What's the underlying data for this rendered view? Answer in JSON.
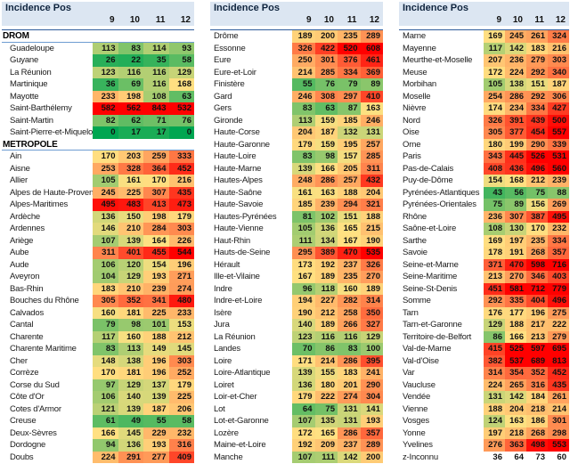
{
  "chart_data": {
    "type": "heatmap",
    "title": "Incidence Pos",
    "week_columns": [
      "9",
      "10",
      "11",
      "12"
    ],
    "color_scale": {
      "min_value": 0,
      "mid_value": 165,
      "max_value": 520,
      "min_color": "#00A651",
      "mid_color": "#FFE182",
      "max_color": "#FF0000"
    },
    "colors": {
      "header_bg": "#DCE6F2",
      "header_border_blue": "#2E5C9C",
      "section_underline_blue": "#6E9CD2",
      "no_fill_bg": "#FFFFFF"
    },
    "tables": [
      {
        "rows": [
          {
            "section": "DROM"
          },
          {
            "name": "Guadeloupe",
            "values": [
              113,
              83,
              114,
              93
            ]
          },
          {
            "name": "Guyane",
            "values": [
              26,
              22,
              35,
              58
            ]
          },
          {
            "name": "La Réunion",
            "values": [
              123,
              116,
              116,
              129
            ]
          },
          {
            "name": "Martinique",
            "values": [
              36,
              69,
              116,
              168
            ]
          },
          {
            "name": "Mayotte",
            "values": [
              233,
              198,
              108,
              63
            ]
          },
          {
            "name": "Saint-Barthélemy",
            "values": [
              582,
              562,
              843,
              532
            ]
          },
          {
            "name": "Saint-Martin",
            "values": [
              82,
              62,
              71,
              76
            ]
          },
          {
            "name": "Saint-Pierre-et-Miquelon",
            "values": [
              0,
              17,
              17,
              0
            ]
          },
          {
            "section": "METROPOLE"
          },
          {
            "name": "Ain",
            "values": [
              170,
              203,
              259,
              333
            ]
          },
          {
            "name": "Aisne",
            "values": [
              253,
              328,
              364,
              452
            ]
          },
          {
            "name": "Allier",
            "values": [
              105,
              161,
              170,
              216
            ]
          },
          {
            "name": "Alpes de Haute-Provence",
            "values": [
              245,
              225,
              307,
              435
            ]
          },
          {
            "name": "Alpes-Maritimes",
            "values": [
              495,
              483,
              413,
              473
            ]
          },
          {
            "name": "Ardèche",
            "values": [
              136,
              150,
              198,
              179
            ]
          },
          {
            "name": "Ardennes",
            "values": [
              146,
              210,
              284,
              303
            ]
          },
          {
            "name": "Ariège",
            "values": [
              107,
              139,
              164,
              226
            ]
          },
          {
            "name": "Aube",
            "values": [
              311,
              401,
              455,
              544
            ]
          },
          {
            "name": "Aude",
            "values": [
              106,
              120,
              154,
              196
            ]
          },
          {
            "name": "Aveyron",
            "values": [
              104,
              129,
              193,
              271
            ]
          },
          {
            "name": "Bas-Rhin",
            "values": [
              183,
              210,
              239,
              274
            ]
          },
          {
            "name": "Bouches du Rhône",
            "values": [
              305,
              352,
              341,
              480
            ]
          },
          {
            "name": "Calvados",
            "values": [
              160,
              181,
              225,
              233
            ]
          },
          {
            "name": "Cantal",
            "values": [
              79,
              98,
              101,
              153
            ]
          },
          {
            "name": "Charente",
            "values": [
              117,
              160,
              188,
              212
            ]
          },
          {
            "name": "Charente Maritime",
            "values": [
              83,
              113,
              149,
              145
            ]
          },
          {
            "name": "Cher",
            "values": [
              148,
              138,
              196,
              303
            ]
          },
          {
            "name": "Corrèze",
            "values": [
              170,
              181,
              196,
              252
            ]
          },
          {
            "name": "Corse du Sud",
            "values": [
              97,
              129,
              137,
              179
            ]
          },
          {
            "name": "Côte d'Or",
            "values": [
              106,
              140,
              139,
              225
            ]
          },
          {
            "name": "Cotes d'Armor",
            "values": [
              121,
              139,
              187,
              206
            ]
          },
          {
            "name": "Creuse",
            "values": [
              61,
              49,
              55,
              58
            ]
          },
          {
            "name": "Deux-Sèvres",
            "values": [
              166,
              145,
              229,
              232
            ]
          },
          {
            "name": "Dordogne",
            "values": [
              94,
              136,
              193,
              316
            ]
          },
          {
            "name": "Doubs",
            "values": [
              224,
              291,
              277,
              409
            ]
          }
        ]
      },
      {
        "rows": [
          {
            "name": "Drôme",
            "values": [
              189,
              200,
              235,
              289
            ]
          },
          {
            "name": "Essonne",
            "values": [
              326,
              422,
              520,
              608
            ]
          },
          {
            "name": "Eure",
            "values": [
              250,
              301,
              376,
              461
            ]
          },
          {
            "name": "Eure-et-Loir",
            "values": [
              214,
              285,
              334,
              369
            ]
          },
          {
            "name": "Finistère",
            "values": [
              55,
              76,
              79,
              89
            ]
          },
          {
            "name": "Gard",
            "values": [
              246,
              308,
              297,
              410
            ]
          },
          {
            "name": "Gers",
            "values": [
              83,
              63,
              87,
              163
            ]
          },
          {
            "name": "Gironde",
            "values": [
              113,
              159,
              185,
              246
            ]
          },
          {
            "name": "Haute-Corse",
            "values": [
              204,
              187,
              132,
              131
            ]
          },
          {
            "name": "Haute-Garonne",
            "values": [
              179,
              159,
              195,
              257
            ]
          },
          {
            "name": "Haute-Loire",
            "values": [
              83,
              98,
              157,
              285
            ]
          },
          {
            "name": "Haute-Marne",
            "values": [
              139,
              166,
              205,
              311
            ]
          },
          {
            "name": "Hautes-Alpes",
            "values": [
              248,
              286,
              257,
              432
            ]
          },
          {
            "name": "Haute-Saône",
            "values": [
              161,
              163,
              188,
              204
            ]
          },
          {
            "name": "Haute-Savoie",
            "values": [
              185,
              239,
              294,
              321
            ]
          },
          {
            "name": "Hautes-Pyrénées",
            "values": [
              81,
              102,
              151,
              188
            ]
          },
          {
            "name": "Haute-Vienne",
            "values": [
              105,
              136,
              165,
              215
            ]
          },
          {
            "name": "Haut-Rhin",
            "values": [
              111,
              134,
              167,
              190
            ]
          },
          {
            "name": "Hauts-de-Seine",
            "values": [
              295,
              389,
              470,
              535
            ]
          },
          {
            "name": "Hérault",
            "values": [
              173,
              192,
              237,
              326
            ]
          },
          {
            "name": "Ille-et-Vilaine",
            "values": [
              167,
              189,
              235,
              270
            ]
          },
          {
            "name": "Indre",
            "values": [
              96,
              118,
              160,
              189
            ]
          },
          {
            "name": "Indre-et-Loire",
            "values": [
              194,
              227,
              282,
              314
            ]
          },
          {
            "name": "Isère",
            "values": [
              190,
              212,
              258,
              350
            ]
          },
          {
            "name": "Jura",
            "values": [
              140,
              189,
              266,
              327
            ]
          },
          {
            "name": "La Réunion",
            "values": [
              123,
              116,
              116,
              129
            ]
          },
          {
            "name": "Landes",
            "values": [
              70,
              86,
              83,
              100
            ]
          },
          {
            "name": "Loire",
            "values": [
              171,
              214,
              286,
              395
            ]
          },
          {
            "name": "Loire-Atlantique",
            "values": [
              139,
              155,
              183,
              241
            ]
          },
          {
            "name": "Loiret",
            "values": [
              136,
              180,
              201,
              290
            ]
          },
          {
            "name": "Loir-et-Cher",
            "values": [
              179,
              222,
              274,
              304
            ]
          },
          {
            "name": "Lot",
            "values": [
              64,
              75,
              131,
              141
            ]
          },
          {
            "name": "Lot-et-Garonne",
            "values": [
              107,
              135,
              131,
              193
            ]
          },
          {
            "name": "Lozère",
            "values": [
              172,
              165,
              286,
              357
            ]
          },
          {
            "name": "Maine-et-Loire",
            "values": [
              192,
              209,
              237,
              289
            ]
          },
          {
            "name": "Manche",
            "values": [
              107,
              111,
              142,
              200
            ]
          }
        ]
      },
      {
        "rows": [
          {
            "name": "Marne",
            "values": [
              169,
              245,
              261,
              324
            ]
          },
          {
            "name": "Mayenne",
            "values": [
              117,
              142,
              183,
              216
            ]
          },
          {
            "name": "Meurthe-et-Moselle",
            "values": [
              207,
              236,
              279,
              303
            ]
          },
          {
            "name": "Meuse",
            "values": [
              172,
              224,
              292,
              340
            ]
          },
          {
            "name": "Morbihan",
            "values": [
              105,
              138,
              151,
              187
            ]
          },
          {
            "name": "Moselle",
            "values": [
              254,
              286,
              292,
              306
            ]
          },
          {
            "name": "Nièvre",
            "values": [
              174,
              234,
              334,
              427
            ]
          },
          {
            "name": "Nord",
            "values": [
              326,
              391,
              439,
              500
            ]
          },
          {
            "name": "Oise",
            "values": [
              305,
              377,
              454,
              557
            ]
          },
          {
            "name": "Orne",
            "values": [
              180,
              199,
              290,
              339
            ]
          },
          {
            "name": "Paris",
            "values": [
              343,
              445,
              526,
              531
            ]
          },
          {
            "name": "Pas-de-Calais",
            "values": [
              408,
              436,
              496,
              560
            ]
          },
          {
            "name": "Puy-de-Dôme",
            "values": [
              154,
              168,
              212,
              239
            ]
          },
          {
            "name": "Pyrénées-Atlantiques",
            "values": [
              43,
              56,
              75,
              88
            ]
          },
          {
            "name": "Pyrénées-Orientales",
            "values": [
              75,
              89,
              156,
              269
            ]
          },
          {
            "name": "Rhône",
            "values": [
              236,
              307,
              387,
              495
            ]
          },
          {
            "name": "Saône-et-Loire",
            "values": [
              108,
              130,
              170,
              232
            ]
          },
          {
            "name": "Sarthe",
            "values": [
              169,
              197,
              235,
              334
            ]
          },
          {
            "name": "Savoie",
            "values": [
              178,
              191,
              268,
              357
            ]
          },
          {
            "name": "Seine-et-Marne",
            "values": [
              371,
              470,
              598,
              716
            ]
          },
          {
            "name": "Seine-Maritime",
            "values": [
              213,
              270,
              346,
              403
            ]
          },
          {
            "name": "Seine-St-Denis",
            "values": [
              451,
              581,
              712,
              779
            ]
          },
          {
            "name": "Somme",
            "values": [
              292,
              335,
              404,
              496
            ]
          },
          {
            "name": "Tarn",
            "values": [
              176,
              177,
              196,
              275
            ]
          },
          {
            "name": "Tarn-et-Garonne",
            "values": [
              129,
              188,
              217,
              222
            ]
          },
          {
            "name": "Territoire-de-Belfort",
            "values": [
              86,
              166,
              213,
              279
            ]
          },
          {
            "name": "Val-de-Marne",
            "values": [
              415,
              525,
              597,
              695
            ]
          },
          {
            "name": "Val-d'Oise",
            "values": [
              382,
              537,
              689,
              813
            ]
          },
          {
            "name": "Var",
            "values": [
              314,
              354,
              352,
              452
            ]
          },
          {
            "name": "Vaucluse",
            "values": [
              224,
              265,
              316,
              435
            ]
          },
          {
            "name": "Vendée",
            "values": [
              131,
              142,
              184,
              261
            ]
          },
          {
            "name": "Vienne",
            "values": [
              188,
              204,
              218,
              214
            ]
          },
          {
            "name": "Vosges",
            "values": [
              124,
              163,
              186,
              301
            ]
          },
          {
            "name": "Yonne",
            "values": [
              197,
              218,
              268,
              298
            ]
          },
          {
            "name": "Yvelines",
            "values": [
              276,
              363,
              498,
              553
            ]
          },
          {
            "name": "z-Inconnu",
            "values": [
              36,
              64,
              73,
              60
            ],
            "no_fill": true
          }
        ]
      }
    ]
  }
}
